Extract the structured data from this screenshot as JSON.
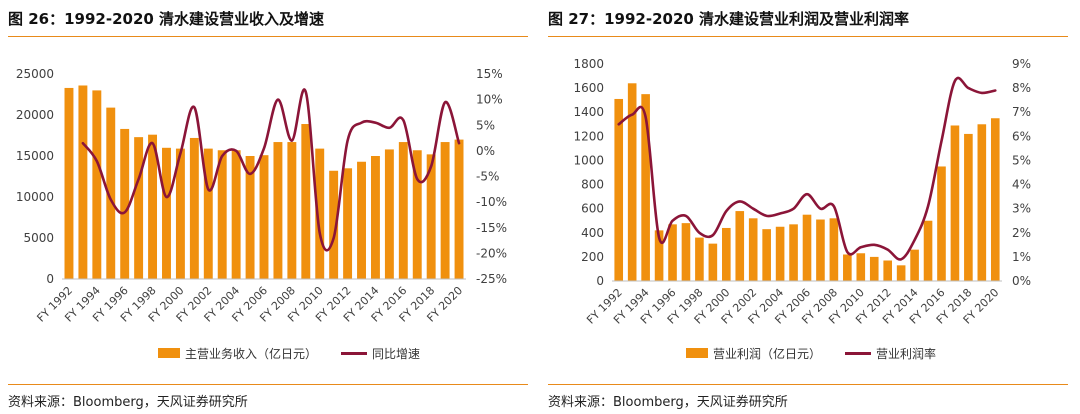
{
  "colors": {
    "bar": "#F0900E",
    "line": "#8B1538",
    "rule": "#E88A1A",
    "axis": "#BFBFBF",
    "text": "#404040"
  },
  "source": "资料来源：Bloomberg，天风证券研究所",
  "chart_data": [
    {
      "type": "bar+line",
      "title": "图 26：1992-2020 清水建设营业收入及增速",
      "x": [
        1992,
        1993,
        1994,
        1995,
        1996,
        1997,
        1998,
        1999,
        2000,
        2001,
        2002,
        2003,
        2004,
        2005,
        2006,
        2007,
        2008,
        2009,
        2010,
        2011,
        2012,
        2013,
        2014,
        2015,
        2016,
        2017,
        2018,
        2019,
        2020
      ],
      "tick_labels": [
        "FY 1992",
        "FY 1994",
        "FY 1996",
        "FY 1998",
        "FY 2000",
        "FY 2002",
        "FY 2004",
        "FY 2006",
        "FY 2008",
        "FY 2010",
        "FY 2012",
        "FY 2014",
        "FY 2016",
        "FY 2018",
        "FY 2020"
      ],
      "left_axis": {
        "min": 0,
        "max": 25000,
        "ticks": [
          "0",
          "5000",
          "10000",
          "15000",
          "20000",
          "25000"
        ]
      },
      "right_axis": {
        "min": -25,
        "max": 15,
        "ticks": [
          "-25%",
          "-20%",
          "-15%",
          "-10%",
          "-5%",
          "0%",
          "5%",
          "10%",
          "15%"
        ]
      },
      "series": [
        {
          "name": "主营业务收入（亿日元）",
          "type": "bar",
          "axis": "left",
          "values": [
            23300,
            23600,
            23000,
            20900,
            18300,
            17300,
            17600,
            16000,
            15900,
            17200,
            15900,
            15700,
            15700,
            15000,
            15100,
            16700,
            16700,
            18900,
            15900,
            13200,
            13500,
            14300,
            15000,
            15800,
            16700,
            15700,
            15200,
            16700,
            17000
          ]
        },
        {
          "name": "同比增速",
          "type": "line",
          "axis": "right",
          "values": [
            null,
            1.5,
            -2.0,
            -9.5,
            -12.0,
            -5.5,
            1.5,
            -9.0,
            -0.5,
            8.5,
            -7.5,
            -1.0,
            0,
            -4.5,
            0.5,
            10.0,
            2.0,
            11.5,
            -16.0,
            -17.0,
            2.0,
            5.5,
            5.5,
            4.5,
            6.0,
            -5.5,
            -3.0,
            9.5,
            1.5
          ]
        }
      ]
    },
    {
      "type": "bar+line",
      "title": "图 27：1992-2020 清水建设营业利润及营业利润率",
      "x": [
        1992,
        1993,
        1994,
        1995,
        1996,
        1997,
        1998,
        1999,
        2000,
        2001,
        2002,
        2003,
        2004,
        2005,
        2006,
        2007,
        2008,
        2009,
        2010,
        2011,
        2012,
        2013,
        2014,
        2015,
        2016,
        2017,
        2018,
        2019,
        2020
      ],
      "tick_labels": [
        "FY 1992",
        "FY 1994",
        "FY 1996",
        "FY 1998",
        "FY 2000",
        "FY 2002",
        "FY 2004",
        "FY 2006",
        "FY 2008",
        "FY 2010",
        "FY 2012",
        "FY 2014",
        "FY 2016",
        "FY 2018",
        "FY 2020"
      ],
      "left_axis": {
        "min": 0,
        "max": 1800,
        "ticks": [
          "0",
          "200",
          "400",
          "600",
          "800",
          "1000",
          "1200",
          "1400",
          "1600",
          "1800"
        ]
      },
      "right_axis": {
        "min": 0,
        "max": 9,
        "ticks": [
          "0%",
          "1%",
          "2%",
          "3%",
          "4%",
          "5%",
          "6%",
          "7%",
          "8%",
          "9%"
        ]
      },
      "series": [
        {
          "name": "营业利润（亿日元）",
          "type": "bar",
          "axis": "left",
          "values": [
            1510,
            1640,
            1550,
            420,
            470,
            480,
            360,
            310,
            440,
            580,
            520,
            430,
            450,
            470,
            550,
            510,
            520,
            220,
            230,
            200,
            170,
            130,
            260,
            500,
            950,
            1290,
            1220,
            1300,
            1350
          ]
        },
        {
          "name": "营业利润率",
          "type": "line",
          "axis": "right",
          "values": [
            6.5,
            6.9,
            6.8,
            1.8,
            2.5,
            2.7,
            2.0,
            1.9,
            2.9,
            3.3,
            3.0,
            2.7,
            2.8,
            3.0,
            3.6,
            3.0,
            3.1,
            1.2,
            1.4,
            1.5,
            1.3,
            0.9,
            1.7,
            3.1,
            5.8,
            8.3,
            8.0,
            7.8,
            7.9
          ]
        }
      ]
    }
  ]
}
